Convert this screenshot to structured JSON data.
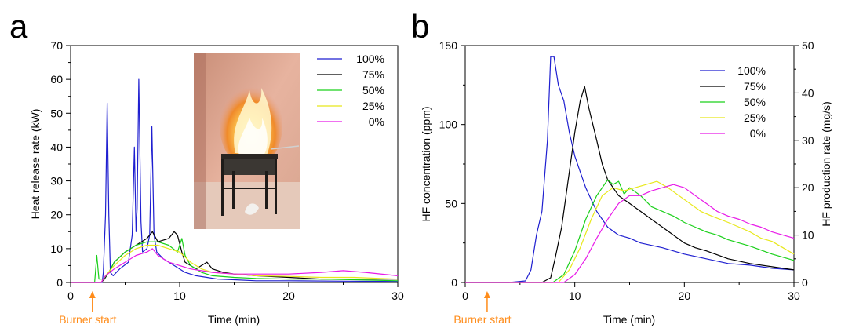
{
  "panel_labels": [
    "a",
    "b"
  ],
  "annotation": {
    "text": "Burner start",
    "x": 2,
    "color": "#ff8c1a"
  },
  "chart_data": [
    {
      "type": "line",
      "title": "",
      "xlabel": "Time (min)",
      "ylabel": "Heat release rate (kW)",
      "xlim": [
        0,
        30
      ],
      "ylim": [
        0,
        70
      ],
      "xticks": [
        0,
        10,
        20,
        30
      ],
      "yticks": [
        0,
        10,
        20,
        30,
        40,
        50,
        60,
        70
      ],
      "legend_position": "top-right",
      "grid": false,
      "has_inset_photo": true,
      "series": [
        {
          "name": "100%",
          "color": "#1f1fd0",
          "points": [
            [
              0,
              0
            ],
            [
              2.9,
              0
            ],
            [
              3.0,
              3
            ],
            [
              3.2,
              20
            ],
            [
              3.35,
              53
            ],
            [
              3.5,
              20
            ],
            [
              3.65,
              3
            ],
            [
              3.9,
              2
            ],
            [
              4.5,
              4
            ],
            [
              5.3,
              6
            ],
            [
              5.65,
              14
            ],
            [
              5.85,
              40
            ],
            [
              6.0,
              15
            ],
            [
              6.1,
              22
            ],
            [
              6.25,
              60
            ],
            [
              6.45,
              18
            ],
            [
              6.6,
              9
            ],
            [
              7.0,
              10
            ],
            [
              7.25,
              14
            ],
            [
              7.45,
              46
            ],
            [
              7.65,
              14
            ],
            [
              7.9,
              9
            ],
            [
              8.5,
              7
            ],
            [
              9.5,
              5
            ],
            [
              10.5,
              3
            ],
            [
              11.5,
              2
            ],
            [
              12.5,
              1.5
            ],
            [
              13.5,
              1
            ],
            [
              15,
              0.8
            ],
            [
              17,
              0.5
            ],
            [
              20,
              0.5
            ],
            [
              25,
              0.4
            ],
            [
              30,
              0.3
            ]
          ]
        },
        {
          "name": "75%",
          "color": "#000000",
          "points": [
            [
              0,
              0
            ],
            [
              2.8,
              0
            ],
            [
              3.1,
              1
            ],
            [
              3.5,
              3
            ],
            [
              4,
              6
            ],
            [
              5,
              9
            ],
            [
              6,
              11
            ],
            [
              7,
              13
            ],
            [
              7.5,
              15
            ],
            [
              8,
              12
            ],
            [
              9,
              13
            ],
            [
              9.5,
              15
            ],
            [
              9.8,
              14
            ],
            [
              10.2,
              9
            ],
            [
              10.5,
              6
            ],
            [
              11,
              5
            ],
            [
              11.5,
              4
            ],
            [
              12,
              5
            ],
            [
              12.5,
              6
            ],
            [
              13,
              4
            ],
            [
              14,
              3
            ],
            [
              15,
              2.5
            ],
            [
              17,
              2
            ],
            [
              20,
              1.5
            ],
            [
              23,
              1
            ],
            [
              26,
              1
            ],
            [
              30,
              1
            ]
          ]
        },
        {
          "name": "50%",
          "color": "#1ad01a",
          "points": [
            [
              0,
              0
            ],
            [
              2.2,
              0
            ],
            [
              2.4,
              8
            ],
            [
              2.6,
              1
            ],
            [
              3,
              1
            ],
            [
              3.5,
              3
            ],
            [
              4,
              6
            ],
            [
              5,
              9
            ],
            [
              6,
              11
            ],
            [
              7,
              12
            ],
            [
              8,
              12
            ],
            [
              9,
              11
            ],
            [
              9.8,
              9
            ],
            [
              10.2,
              13
            ],
            [
              10.5,
              8
            ],
            [
              11,
              5
            ],
            [
              12,
              3
            ],
            [
              13,
              2
            ],
            [
              15,
              1.5
            ],
            [
              17,
              1.2
            ],
            [
              20,
              1
            ],
            [
              23,
              1
            ],
            [
              26,
              0.8
            ],
            [
              30,
              0.5
            ]
          ]
        },
        {
          "name": "25%",
          "color": "#e8e81a",
          "points": [
            [
              0,
              0
            ],
            [
              2.8,
              0
            ],
            [
              3.2,
              2
            ],
            [
              4,
              5
            ],
            [
              5,
              8
            ],
            [
              6,
              10
            ],
            [
              7,
              11
            ],
            [
              8,
              11
            ],
            [
              9,
              10
            ],
            [
              10,
              9
            ],
            [
              11,
              6
            ],
            [
              12,
              4
            ],
            [
              13,
              3
            ],
            [
              15,
              2.5
            ],
            [
              17,
              2
            ],
            [
              20,
              1.8
            ],
            [
              23,
              1.5
            ],
            [
              26,
              1.5
            ],
            [
              30,
              1
            ]
          ]
        },
        {
          "name": "0%",
          "color": "#e81ae8",
          "points": [
            [
              0,
              0
            ],
            [
              2.8,
              0
            ],
            [
              3.2,
              2
            ],
            [
              4,
              4
            ],
            [
              5,
              6
            ],
            [
              6,
              8
            ],
            [
              7,
              9
            ],
            [
              7.5,
              10
            ],
            [
              8,
              8
            ],
            [
              9,
              6
            ],
            [
              10,
              5
            ],
            [
              11,
              4
            ],
            [
              12,
              3.5
            ],
            [
              13,
              3
            ],
            [
              15,
              2.5
            ],
            [
              17,
              2.5
            ],
            [
              20,
              2.5
            ],
            [
              23,
              3
            ],
            [
              25,
              3.5
            ],
            [
              27,
              3
            ],
            [
              30,
              2
            ]
          ]
        }
      ]
    },
    {
      "type": "line",
      "title": "",
      "xlabel": "Time (min)",
      "ylabel": "HF concentration (ppm)",
      "ylabel_right": "HF production rate (mg/s)",
      "xlim": [
        0,
        30
      ],
      "ylim": [
        0,
        150
      ],
      "ylim_right": [
        0,
        50
      ],
      "xticks": [
        0,
        10,
        20,
        30
      ],
      "yticks": [
        0,
        50,
        100,
        150
      ],
      "yticks_right": [
        0,
        10,
        20,
        30,
        40,
        50
      ],
      "legend_position": "top-right",
      "grid": false,
      "series": [
        {
          "name": "100%",
          "color": "#1f1fd0",
          "points": [
            [
              0,
              0
            ],
            [
              4,
              0
            ],
            [
              5.5,
              1
            ],
            [
              6,
              8
            ],
            [
              6.5,
              30
            ],
            [
              7,
              45
            ],
            [
              7.5,
              90
            ],
            [
              7.8,
              143
            ],
            [
              8.1,
              143
            ],
            [
              8.5,
              125
            ],
            [
              9,
              115
            ],
            [
              9.5,
              95
            ],
            [
              10,
              80
            ],
            [
              10.5,
              70
            ],
            [
              11,
              60
            ],
            [
              12,
              45
            ],
            [
              13,
              35
            ],
            [
              14,
              30
            ],
            [
              15,
              28
            ],
            [
              16,
              25
            ],
            [
              18,
              22
            ],
            [
              20,
              18
            ],
            [
              22,
              15
            ],
            [
              24,
              12
            ],
            [
              26,
              11
            ],
            [
              28,
              9
            ],
            [
              30,
              8
            ]
          ]
        },
        {
          "name": "75%",
          "color": "#000000",
          "points": [
            [
              0,
              0
            ],
            [
              7,
              0
            ],
            [
              7.8,
              3
            ],
            [
              8.2,
              15
            ],
            [
              8.8,
              35
            ],
            [
              9.5,
              70
            ],
            [
              10,
              95
            ],
            [
              10.5,
              115
            ],
            [
              10.9,
              124
            ],
            [
              11.3,
              110
            ],
            [
              12,
              90
            ],
            [
              12.5,
              75
            ],
            [
              13,
              65
            ],
            [
              14,
              55
            ],
            [
              15,
              50
            ],
            [
              16,
              45
            ],
            [
              17,
              40
            ],
            [
              18,
              35
            ],
            [
              19,
              30
            ],
            [
              20,
              25
            ],
            [
              21,
              22
            ],
            [
              22,
              20
            ],
            [
              24,
              15
            ],
            [
              26,
              12
            ],
            [
              28,
              10
            ],
            [
              30,
              8
            ]
          ]
        },
        {
          "name": "50%",
          "color": "#1ad01a",
          "points": [
            [
              0,
              0
            ],
            [
              8,
              0
            ],
            [
              9,
              5
            ],
            [
              10,
              20
            ],
            [
              11,
              40
            ],
            [
              12,
              55
            ],
            [
              13,
              65
            ],
            [
              13.5,
              62
            ],
            [
              14,
              64
            ],
            [
              14.5,
              56
            ],
            [
              15,
              60
            ],
            [
              16,
              55
            ],
            [
              17,
              48
            ],
            [
              18,
              45
            ],
            [
              19,
              42
            ],
            [
              20,
              38
            ],
            [
              21,
              35
            ],
            [
              22,
              32
            ],
            [
              23,
              30
            ],
            [
              24,
              27
            ],
            [
              25,
              25
            ],
            [
              26,
              23
            ],
            [
              28,
              18
            ],
            [
              30,
              14
            ]
          ]
        },
        {
          "name": "25%",
          "color": "#e8e81a",
          "points": [
            [
              0,
              0
            ],
            [
              8.5,
              0
            ],
            [
              9.5,
              8
            ],
            [
              10.5,
              22
            ],
            [
              11.5,
              40
            ],
            [
              12.5,
              55
            ],
            [
              13.5,
              60
            ],
            [
              14.5,
              58
            ],
            [
              15.5,
              60
            ],
            [
              16.5,
              62
            ],
            [
              17.5,
              64
            ],
            [
              18.5,
              60
            ],
            [
              19.5,
              55
            ],
            [
              20.5,
              50
            ],
            [
              21.5,
              45
            ],
            [
              22.5,
              42
            ],
            [
              24,
              38
            ],
            [
              25,
              35
            ],
            [
              26,
              32
            ],
            [
              27,
              28
            ],
            [
              28,
              26
            ],
            [
              29,
              22
            ],
            [
              30,
              18
            ]
          ]
        },
        {
          "name": "0%",
          "color": "#e81ae8",
          "points": [
            [
              0,
              0
            ],
            [
              9,
              0
            ],
            [
              10,
              5
            ],
            [
              11,
              15
            ],
            [
              12,
              28
            ],
            [
              13,
              40
            ],
            [
              14,
              50
            ],
            [
              15,
              55
            ],
            [
              16,
              55
            ],
            [
              17,
              58
            ],
            [
              18,
              60
            ],
            [
              19,
              62
            ],
            [
              20,
              60
            ],
            [
              21,
              55
            ],
            [
              22,
              50
            ],
            [
              23,
              45
            ],
            [
              24,
              42
            ],
            [
              25,
              40
            ],
            [
              26,
              37
            ],
            [
              27,
              35
            ],
            [
              28,
              32
            ],
            [
              29,
              30
            ],
            [
              30,
              28
            ]
          ]
        }
      ]
    }
  ]
}
